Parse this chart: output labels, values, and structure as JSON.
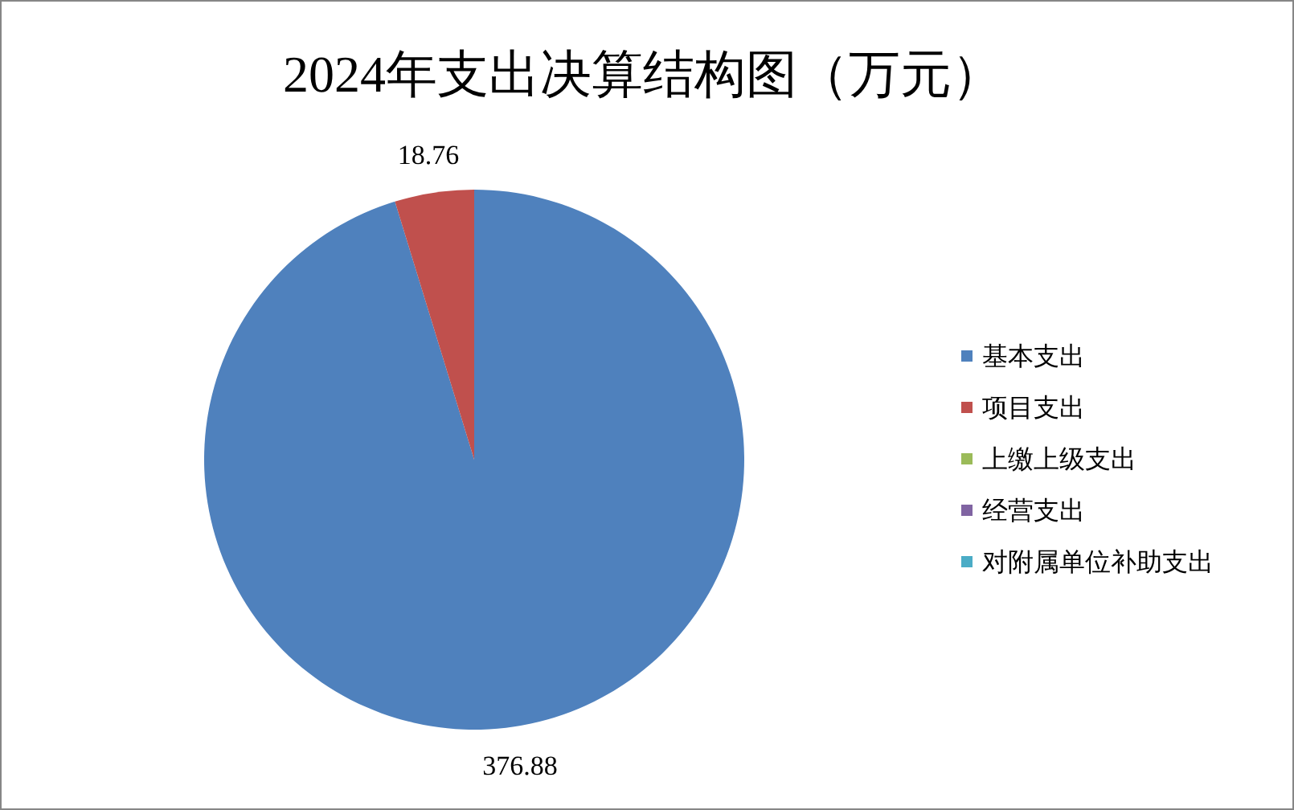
{
  "chart_data": {
    "type": "pie",
    "title": "2024年支出决算结构图（万元）",
    "categories": [
      "基本支出",
      "项目支出",
      "上缴上级支出",
      "经营支出",
      "对附属单位补助支出"
    ],
    "values": [
      376.88,
      18.76,
      0,
      0,
      0
    ],
    "colors": [
      "#4f81bd",
      "#c0504d",
      "#9bbb59",
      "#8064a2",
      "#4bacc6"
    ],
    "value_labels": [
      "376.88",
      "18.76",
      null,
      null,
      null
    ],
    "legend": "right"
  }
}
